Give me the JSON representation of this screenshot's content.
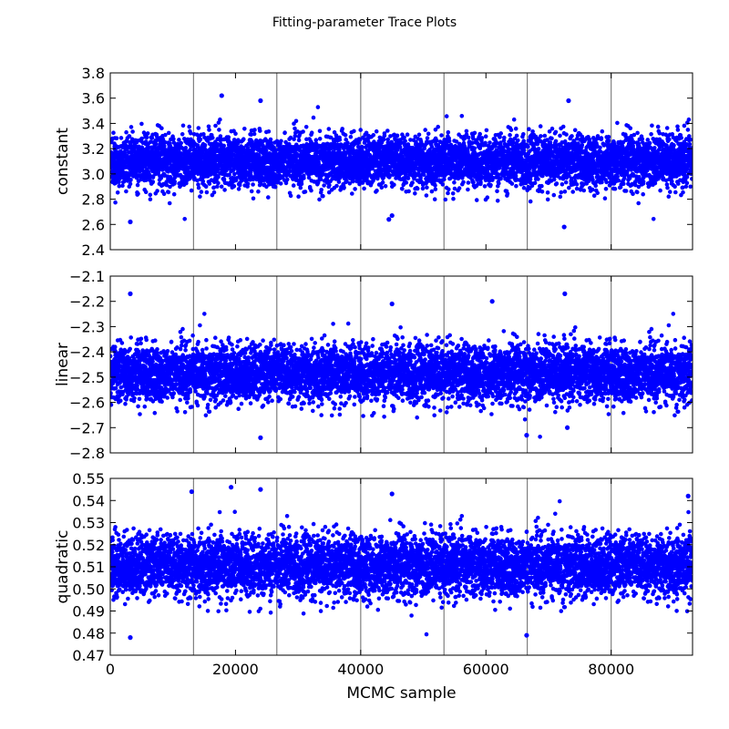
{
  "figure": {
    "title": "Fitting-parameter Trace Plots"
  },
  "chart_data": [
    {
      "type": "scatter",
      "ylabel": "constant",
      "xlabel": "",
      "xlim": [
        0,
        93000
      ],
      "ylim": [
        2.4,
        3.8
      ],
      "y_ticks": [
        "2.4",
        "2.6",
        "2.8",
        "3.0",
        "3.2",
        "3.4",
        "3.6",
        "3.8"
      ],
      "x_ticks": [],
      "point_color": "#0000ff",
      "vlines": [
        13300,
        26600,
        40000,
        53300,
        66600,
        80000
      ],
      "center": 3.1,
      "spread": 0.1,
      "n_samples": 93000,
      "outliers": [
        [
          3200,
          2.62
        ],
        [
          17800,
          3.62
        ],
        [
          24000,
          3.58
        ],
        [
          44500,
          2.64
        ],
        [
          45000,
          2.67
        ],
        [
          72500,
          2.58
        ],
        [
          73200,
          3.58
        ]
      ]
    },
    {
      "type": "scatter",
      "ylabel": "linear",
      "xlabel": "",
      "xlim": [
        0,
        93000
      ],
      "ylim": [
        -2.8,
        -2.1
      ],
      "y_ticks": [
        "−2.8",
        "−2.7",
        "−2.6",
        "−2.5",
        "−2.4",
        "−2.3",
        "−2.2",
        "−2.1"
      ],
      "x_ticks": [],
      "point_color": "#0000ff",
      "vlines": [
        13300,
        26600,
        40000,
        53300,
        66600,
        80000
      ],
      "center": -2.485,
      "spread": 0.055,
      "n_samples": 93000,
      "outliers": [
        [
          3200,
          -2.17
        ],
        [
          24000,
          -2.74
        ],
        [
          45000,
          -2.21
        ],
        [
          61000,
          -2.2
        ],
        [
          72600,
          -2.17
        ],
        [
          73000,
          -2.7
        ],
        [
          66500,
          -2.73
        ]
      ]
    },
    {
      "type": "scatter",
      "ylabel": "quadratic",
      "xlabel": "MCMC sample",
      "xlim": [
        0,
        93000
      ],
      "ylim": [
        0.47,
        0.55
      ],
      "y_ticks": [
        "0.47",
        "0.48",
        "0.49",
        "0.50",
        "0.51",
        "0.52",
        "0.53",
        "0.54",
        "0.55"
      ],
      "x_ticks": [
        "0",
        "20000",
        "40000",
        "60000",
        "80000"
      ],
      "x_tick_values": [
        0,
        20000,
        40000,
        60000,
        80000
      ],
      "point_color": "#0000ff",
      "vlines": [
        13300,
        26600,
        40000,
        53300,
        66600,
        80000
      ],
      "center": 0.5105,
      "spread": 0.0068,
      "n_samples": 93000,
      "outliers": [
        [
          3200,
          0.478
        ],
        [
          13000,
          0.544
        ],
        [
          19300,
          0.546
        ],
        [
          24000,
          0.545
        ],
        [
          45000,
          0.543
        ],
        [
          66500,
          0.479
        ],
        [
          92300,
          0.542
        ]
      ]
    }
  ]
}
